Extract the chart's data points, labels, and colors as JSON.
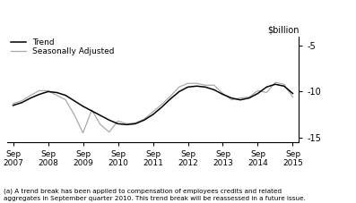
{
  "title": "$billion",
  "ylim": [
    -15.5,
    -4.0
  ],
  "yticks": [
    -5,
    -10,
    -15
  ],
  "footnote": "(a) A trend break has been applied to compensation of employees credits and related\naggregates in September quarter 2010. This trend break will be reassessed in a future issue.",
  "legend_trend": "Trend",
  "legend_sa": "Seasonally Adjusted",
  "trend_color": "#000000",
  "sa_color": "#aaaaaa",
  "background_color": "#ffffff",
  "xtick_labels": [
    "Sep\n2007",
    "Sep\n2008",
    "Sep\n2009",
    "Sep\n2010",
    "Sep\n2011",
    "Sep\n2012",
    "Sep\n2013",
    "Sep\n2014",
    "Sep\n2015"
  ],
  "xtick_positions": [
    2007.67,
    2008.67,
    2009.67,
    2010.67,
    2011.67,
    2012.67,
    2013.67,
    2014.67,
    2015.67
  ],
  "trend_x": [
    2007.67,
    2007.92,
    2008.17,
    2008.42,
    2008.67,
    2008.92,
    2009.17,
    2009.42,
    2009.67,
    2009.92,
    2010.17,
    2010.42,
    2010.67,
    2010.92,
    2011.17,
    2011.42,
    2011.67,
    2011.92,
    2012.17,
    2012.42,
    2012.67,
    2012.92,
    2013.17,
    2013.42,
    2013.67,
    2013.92,
    2014.17,
    2014.42,
    2014.67,
    2014.92,
    2015.17,
    2015.42,
    2015.67
  ],
  "trend_y": [
    -11.5,
    -11.2,
    -10.7,
    -10.3,
    -10.0,
    -10.1,
    -10.4,
    -11.0,
    -11.6,
    -12.1,
    -12.6,
    -13.1,
    -13.5,
    -13.6,
    -13.5,
    -13.1,
    -12.5,
    -11.7,
    -10.8,
    -10.0,
    -9.5,
    -9.4,
    -9.5,
    -9.8,
    -10.3,
    -10.7,
    -10.9,
    -10.7,
    -10.2,
    -9.5,
    -9.2,
    -9.4,
    -10.2
  ],
  "sa_x": [
    2007.67,
    2007.92,
    2008.17,
    2008.42,
    2008.67,
    2008.92,
    2009.17,
    2009.42,
    2009.67,
    2009.92,
    2010.17,
    2010.42,
    2010.67,
    2010.92,
    2011.17,
    2011.42,
    2011.67,
    2011.92,
    2012.17,
    2012.42,
    2012.67,
    2012.92,
    2013.17,
    2013.42,
    2013.67,
    2013.92,
    2014.17,
    2014.42,
    2014.67,
    2014.92,
    2015.17,
    2015.42,
    2015.67
  ],
  "sa_y": [
    -11.3,
    -11.0,
    -10.4,
    -9.9,
    -9.9,
    -10.4,
    -10.9,
    -12.5,
    -14.5,
    -12.0,
    -13.6,
    -14.4,
    -13.2,
    -13.5,
    -13.4,
    -13.0,
    -12.2,
    -11.4,
    -10.5,
    -9.5,
    -9.1,
    -9.1,
    -9.3,
    -9.3,
    -10.2,
    -10.9,
    -10.7,
    -10.6,
    -9.9,
    -10.1,
    -9.0,
    -9.2,
    -10.6
  ]
}
